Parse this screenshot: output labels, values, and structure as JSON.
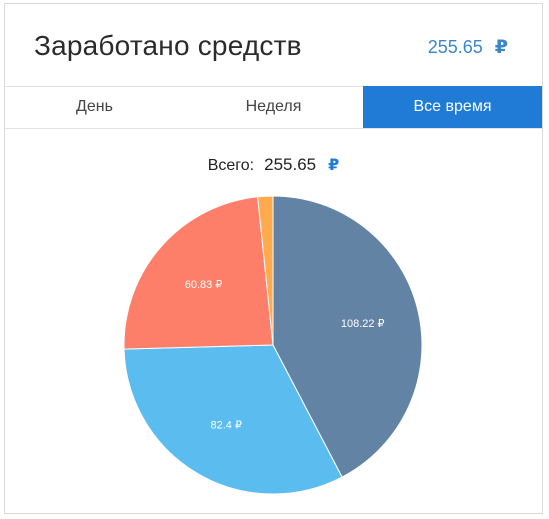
{
  "header": {
    "title": "Заработано средств",
    "amount": "255.65",
    "currency": "₽"
  },
  "tabs": [
    {
      "label": "День",
      "active": false
    },
    {
      "label": "Неделя",
      "active": false
    },
    {
      "label": "Все время",
      "active": true
    }
  ],
  "total": {
    "label": "Всего:",
    "value": "255.65",
    "currency": "₽"
  },
  "chart_data": {
    "type": "pie",
    "slices": [
      {
        "label": "108.22 ₽",
        "value": 108.22,
        "color": "#6383a4"
      },
      {
        "label": "82.4 ₽",
        "value": 82.4,
        "color": "#5bbcf0"
      },
      {
        "label": "60.83 ₽",
        "value": 60.83,
        "color": "#fe7f69"
      },
      {
        "label": "",
        "value": 4.2,
        "color": "#ffaa4c"
      }
    ],
    "start_angle_deg": 0,
    "direction": "clockwise",
    "legend": "none"
  }
}
